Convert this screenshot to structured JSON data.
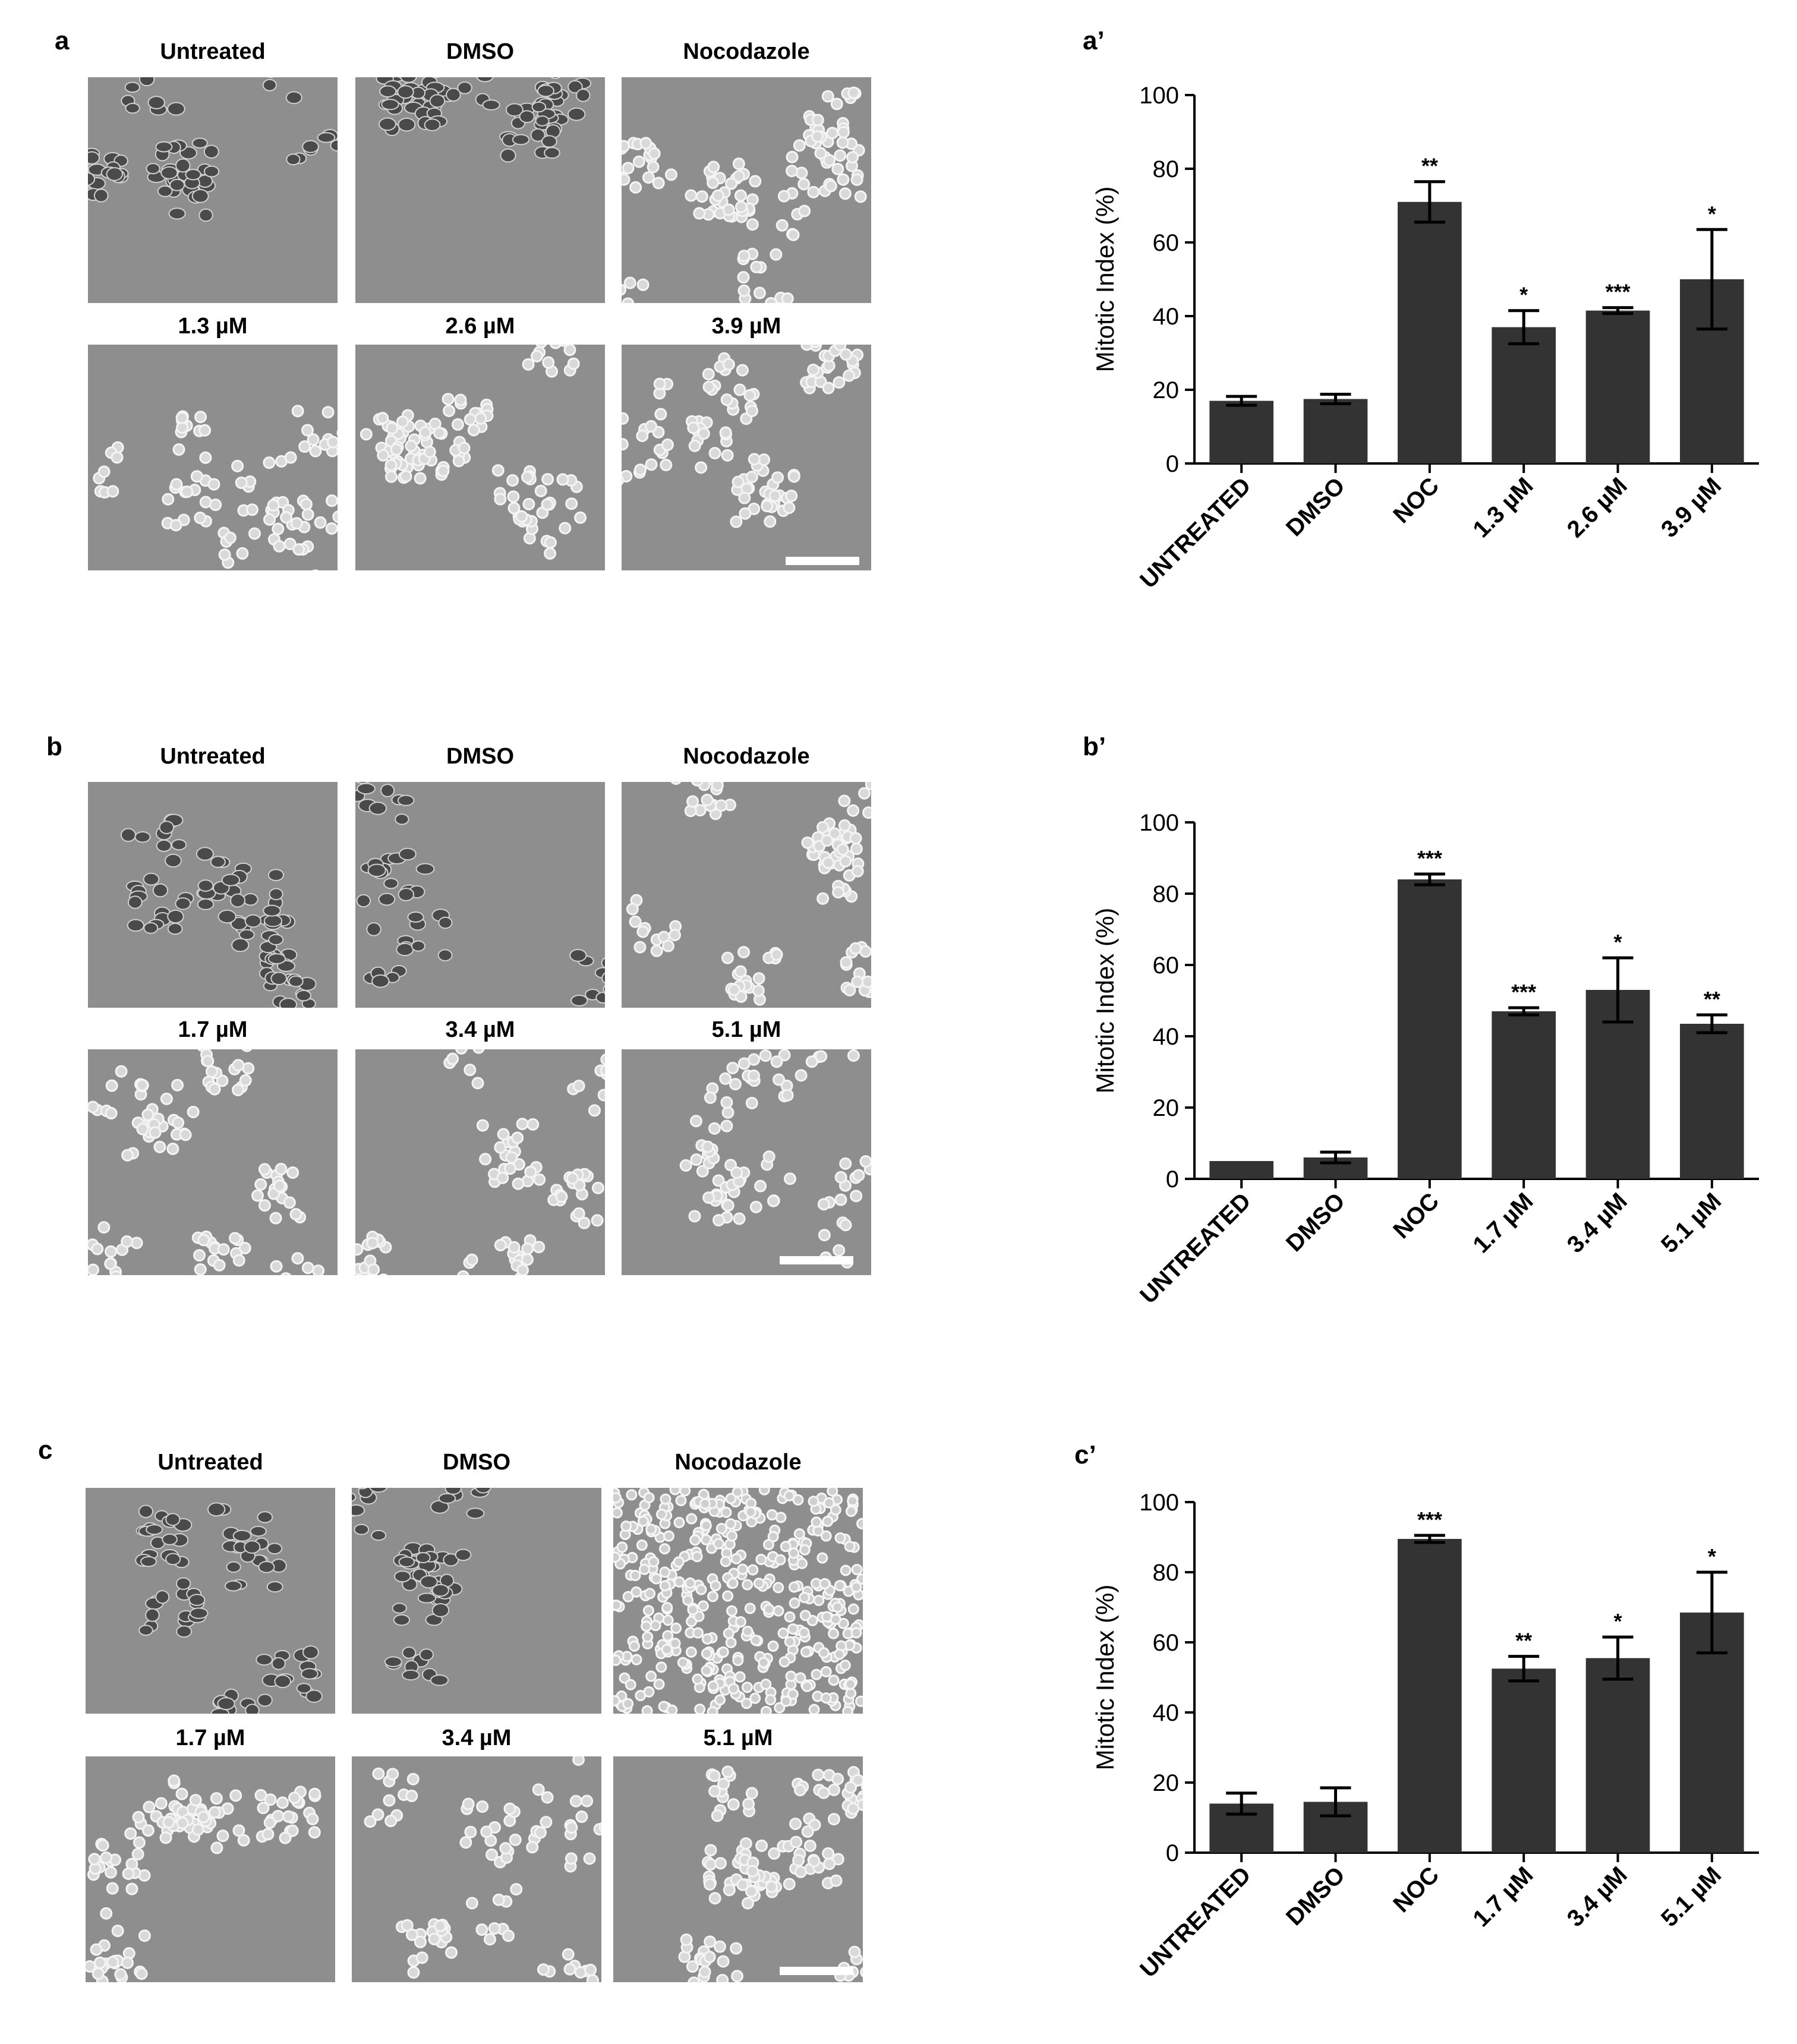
{
  "panels": [
    {
      "letter": "a",
      "top_labels": [
        "Untreated",
        "DMSO",
        "Nocodazole"
      ],
      "bottom_labels": [
        "1.3 µM",
        "2.6 µM",
        "3.9 µM"
      ],
      "chart_letter": "a’"
    },
    {
      "letter": "b",
      "top_labels": [
        "Untreated",
        "DMSO",
        "Nocodazole"
      ],
      "bottom_labels": [
        "1.7 µM",
        "3.4 µM",
        "5.1 µM"
      ],
      "chart_letter": "b’"
    },
    {
      "letter": "c",
      "top_labels": [
        "Untreated",
        "DMSO",
        "Nocodazole"
      ],
      "bottom_labels": [
        "1.7 µM",
        "3.4 µM",
        "5.1 µM"
      ],
      "chart_letter": "c’"
    }
  ],
  "chart_data": [
    {
      "type": "bar",
      "ylabel": "Mitotic Index (%)",
      "ylim": [
        0,
        100
      ],
      "yticks": [
        "0",
        "20",
        "40",
        "60",
        "80",
        "100"
      ],
      "categories": [
        "UNTREATED",
        "DMSO",
        "NOC",
        "1.3 µM",
        "2.6 µM",
        "3.9 µM"
      ],
      "values": [
        17,
        17.5,
        71,
        37,
        41.5,
        50
      ],
      "errors": [
        1.2,
        1.3,
        5.5,
        4.5,
        0.8,
        13.5
      ],
      "significance": [
        "",
        "",
        "**",
        "*",
        "***",
        "*"
      ],
      "bar_color": "#333333"
    },
    {
      "type": "bar",
      "ylabel": "Mitotic Index (%)",
      "ylim": [
        0,
        100
      ],
      "yticks": [
        "0",
        "20",
        "40",
        "60",
        "80",
        "100"
      ],
      "categories": [
        "UNTREATED",
        "DMSO",
        "NOC",
        "1.7 µM",
        "3.4 µM",
        "5.1 µM"
      ],
      "values": [
        5,
        6,
        84,
        47,
        53,
        43.5
      ],
      "errors": [
        0,
        1.5,
        1.5,
        1,
        9,
        2.5
      ],
      "significance": [
        "",
        "",
        "***",
        "***",
        "*",
        "**"
      ],
      "bar_color": "#333333"
    },
    {
      "type": "bar",
      "ylabel": "Mitotic Index (%)",
      "ylim": [
        0,
        100
      ],
      "yticks": [
        "0",
        "20",
        "40",
        "60",
        "80",
        "100"
      ],
      "categories": [
        "UNTREATED",
        "DMSO",
        "NOC",
        "1.7 µM",
        "3.4 µM",
        "5.1 µM"
      ],
      "values": [
        14,
        14.5,
        89.5,
        52.5,
        55.5,
        68.5
      ],
      "errors": [
        3,
        4,
        1,
        3.5,
        6,
        11.5
      ],
      "significance": [
        "",
        "",
        "***",
        "**",
        "*",
        "*"
      ],
      "bar_color": "#333333"
    }
  ]
}
